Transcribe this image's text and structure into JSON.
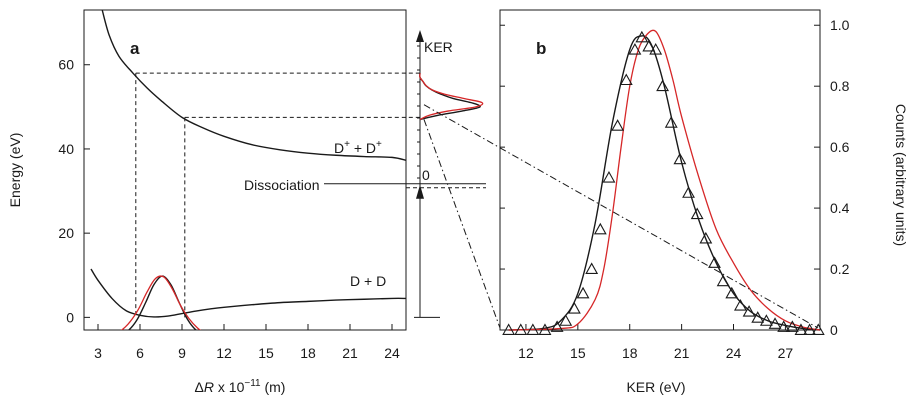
{
  "chart_data": [
    {
      "panel": "a",
      "type": "line",
      "xlabel": "ΔR x 10⁻¹¹ (m)",
      "ylabel": "Energy (eV)",
      "xlim": [
        2,
        25
      ],
      "ylim": [
        -3,
        73
      ],
      "xticks": [
        3,
        6,
        9,
        12,
        15,
        18,
        21,
        24
      ],
      "yticks": [
        0,
        20,
        40,
        60
      ],
      "labels": {
        "upper_state": "D⁺ + D⁺",
        "lower_state": "D + D",
        "dissociation": "Dissociation",
        "kerzero": "0",
        "ker": "KER"
      },
      "series": [
        {
          "name": "D⁺ + D⁺",
          "color": "#1a1a1a",
          "x": [
            3.3,
            3.8,
            4.5,
            5.5,
            6.5,
            7.5,
            9,
            10.5,
            12,
            14,
            16,
            18,
            20,
            22,
            24,
            25
          ],
          "y": [
            73,
            67,
            62,
            58,
            54.5,
            51.5,
            47.5,
            45,
            43,
            41,
            39.8,
            39,
            38.5,
            38.2,
            38,
            37.3
          ]
        },
        {
          "name": "D + D",
          "color": "#1a1a1a",
          "x": [
            2.5,
            3,
            4,
            5,
            6,
            7,
            8,
            9,
            10,
            11,
            12,
            14,
            16,
            18,
            20,
            22,
            24,
            25
          ],
          "y": [
            11.5,
            8.8,
            4.5,
            1.6,
            0.5,
            0.1,
            0.3,
            0.9,
            1.5,
            2.0,
            2.4,
            3.0,
            3.5,
            3.8,
            4.1,
            4.3,
            4.5,
            4.5
          ]
        },
        {
          "name": "wavepacket (black)",
          "color": "#1a1a1a",
          "x": [
            4.6,
            5.2,
            5.8,
            6.4,
            7.0,
            7.6,
            8.2,
            8.8,
            9.4,
            10.0,
            10.6
          ],
          "y": [
            -4,
            -3,
            -0.5,
            3.5,
            7.8,
            9.8,
            7.8,
            3.5,
            -0.5,
            -3,
            -4
          ]
        },
        {
          "name": "wavepacket (red)",
          "color": "#d62728",
          "x": [
            4.1,
            4.7,
            5.3,
            5.9,
            6.5,
            7.1,
            7.7,
            8.3,
            8.9,
            9.5,
            10.1,
            10.7
          ],
          "y": [
            -4,
            -3,
            -1,
            2,
            6,
            9.2,
            9.6,
            6.8,
            2.8,
            -0.3,
            -2.5,
            -4
          ]
        }
      ],
      "dashed_levels": [
        58,
        47.5
      ],
      "dashed_verticals": [
        5.7,
        9.2
      ],
      "dissociation_level": 31.5,
      "ker_origin": 0,
      "inset_distribution": {
        "energy": [
          48,
          49,
          50,
          51,
          52,
          53,
          54,
          55,
          56,
          57
        ],
        "black": [
          0.3,
          0.7,
          1,
          0.85,
          0.55,
          0.35,
          0.2,
          0.1,
          0.05,
          0
        ],
        "red": [
          0.15,
          0.45,
          0.9,
          1,
          0.7,
          0.4,
          0.2,
          0.1,
          0.05,
          0
        ]
      }
    },
    {
      "panel": "b",
      "type": "line",
      "xlabel": "KER (eV)",
      "ylabel": "Counts (arbitrary units)",
      "xlim": [
        10.5,
        29
      ],
      "ylim": [
        0,
        1.05
      ],
      "xticks": [
        12,
        15,
        18,
        21,
        24,
        27
      ],
      "yticks": [
        0,
        0.2,
        0.4,
        0.6,
        0.8,
        1.0
      ],
      "series": [
        {
          "name": "fit (black)",
          "color": "#1a1a1a",
          "x": [
            11,
            13,
            14,
            15,
            16,
            17,
            18,
            18.7,
            19.3,
            20,
            21,
            22,
            23,
            24,
            25,
            26,
            27,
            28,
            29
          ],
          "y": [
            0,
            0.005,
            0.03,
            0.12,
            0.35,
            0.68,
            0.92,
            0.965,
            0.93,
            0.8,
            0.55,
            0.36,
            0.22,
            0.12,
            0.06,
            0.03,
            0.015,
            0.005,
            0
          ]
        },
        {
          "name": "simulation (red)",
          "color": "#d62728",
          "x": [
            11,
            14,
            15,
            16,
            16.5,
            17,
            17.5,
            18,
            18.5,
            19,
            19.5,
            20,
            20.5,
            21,
            22,
            23,
            24,
            25,
            26,
            27,
            28,
            29
          ],
          "y": [
            0,
            0.005,
            0.02,
            0.1,
            0.2,
            0.38,
            0.6,
            0.8,
            0.92,
            0.97,
            0.98,
            0.92,
            0.82,
            0.7,
            0.5,
            0.33,
            0.22,
            0.13,
            0.07,
            0.03,
            0.01,
            0
          ]
        },
        {
          "name": "data (triangles)",
          "color": "#1a1a1a",
          "marker": "triangle",
          "x": [
            11,
            11.7,
            12.4,
            13.1,
            13.8,
            14.3,
            14.8,
            15.3,
            15.8,
            16.3,
            16.8,
            17.3,
            17.8,
            18.3,
            18.7,
            19.1,
            19.5,
            19.9,
            20.4,
            20.9,
            21.4,
            21.9,
            22.4,
            22.9,
            23.4,
            23.9,
            24.4,
            24.9,
            25.4,
            25.9,
            26.4,
            26.9,
            27.4,
            27.9,
            28.4,
            28.9
          ],
          "y": [
            0,
            0,
            0,
            0,
            0.01,
            0.03,
            0.07,
            0.12,
            0.2,
            0.33,
            0.5,
            0.67,
            0.82,
            0.92,
            0.96,
            0.93,
            0.92,
            0.8,
            0.68,
            0.56,
            0.45,
            0.38,
            0.3,
            0.22,
            0.16,
            0.12,
            0.08,
            0.06,
            0.04,
            0.03,
            0.02,
            0.01,
            0.01,
            0,
            0,
            0
          ]
        }
      ]
    }
  ]
}
